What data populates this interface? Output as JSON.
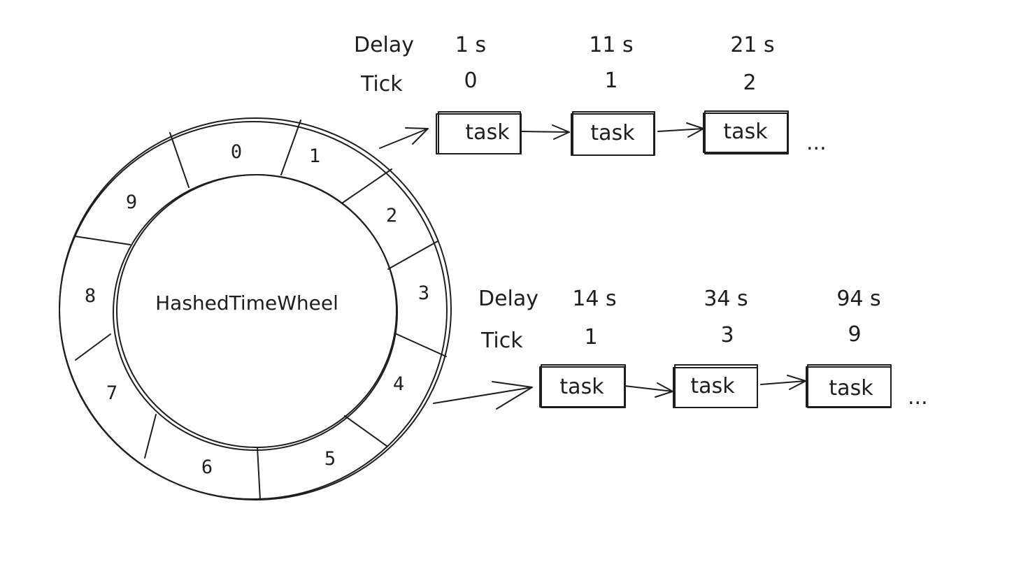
{
  "wheel": {
    "title": "HashedTimeWheel",
    "slots": [
      "0",
      "1",
      "2",
      "3",
      "4",
      "5",
      "6",
      "7",
      "8",
      "9"
    ]
  },
  "labels": {
    "delay": "Delay",
    "tick": "Tick",
    "ellipsis": "..."
  },
  "chains": [
    {
      "slot": "1",
      "tasks": [
        {
          "label": "task",
          "delay": "1 s",
          "tick": "0"
        },
        {
          "label": "task",
          "delay": "11 s",
          "tick": "1"
        },
        {
          "label": "task",
          "delay": "21 s",
          "tick": "2"
        }
      ]
    },
    {
      "slot": "4",
      "tasks": [
        {
          "label": "task",
          "delay": "14 s",
          "tick": "1"
        },
        {
          "label": "task",
          "delay": "34 s",
          "tick": "3"
        },
        {
          "label": "task",
          "delay": "94 s",
          "tick": "9"
        }
      ]
    }
  ]
}
